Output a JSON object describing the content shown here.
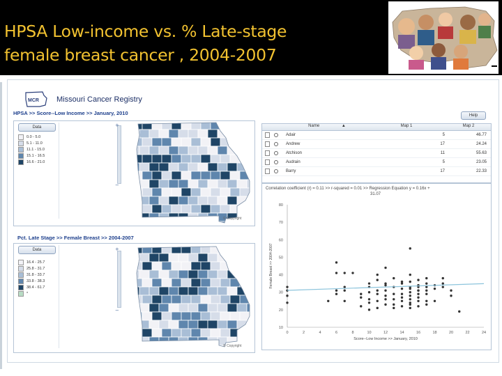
{
  "slide": {
    "title_line1": "HPSA Low-income vs. % Late-stage",
    "title_line2": "female breast cancer , 2004-2007"
  },
  "app": {
    "name": "Missouri Cancer Registry",
    "logo_text": "MCR",
    "help_label": "Help",
    "copyright": "© Copyright"
  },
  "map1": {
    "breadcrumb": "HPSA >> Score--Low Income >> January, 2010",
    "data_button": "Data",
    "legend": [
      {
        "label": "0.0 - 5.0",
        "color": "#f2f2f6"
      },
      {
        "label": "5.1 - 11.0",
        "color": "#d6dde9"
      },
      {
        "label": "11.1 - 15.0",
        "color": "#a9bed6"
      },
      {
        "label": "15.1 - 16.5",
        "color": "#5f86ad"
      },
      {
        "label": "16.6 - 21.0",
        "color": "#1f4566"
      }
    ]
  },
  "map2": {
    "breadcrumb": "Pct. Late Stage >> Female Breast >> 2004-2007",
    "data_button": "Data",
    "legend": [
      {
        "label": "16.4 - 25.7",
        "color": "#f2f2f6"
      },
      {
        "label": "25.8 - 31.7",
        "color": "#d6dde9"
      },
      {
        "label": "31.8 - 33.7",
        "color": "#a9bed6"
      },
      {
        "label": "33.8 - 38.3",
        "color": "#5f86ad"
      },
      {
        "label": "38.4 - 61.7",
        "color": "#1f4566"
      },
      {
        "label": "*",
        "color": "#b8dcc4"
      }
    ]
  },
  "table": {
    "headers": [
      "Name",
      "Map 1",
      "Map 2"
    ],
    "sort_indicator": "▲",
    "rows": [
      {
        "name": "Adair",
        "map1": "5",
        "map2": "46.77"
      },
      {
        "name": "Andrew",
        "map1": "17",
        "map2": "24.24"
      },
      {
        "name": "Atchison",
        "map1": "11",
        "map2": "55.63"
      },
      {
        "name": "Audrain",
        "map1": "5",
        "map2": "23.05"
      },
      {
        "name": "Barry",
        "map1": "17",
        "map2": "22.33"
      }
    ]
  },
  "regression": {
    "stats_line1": "Correlation coefficient (r) = 0.11  >> r-squared = 0.01 >> Regression Equation y = 0.16x +",
    "stats_line2": "31.07"
  },
  "chart_data": {
    "type": "scatter",
    "xlabel": "Score--Low Income >> January, 2010",
    "ylabel": "Female Breast >> 2004-2007",
    "xlim": [
      0,
      24
    ],
    "ylim": [
      10,
      80
    ],
    "xticks": [
      0,
      2,
      4,
      6,
      8,
      10,
      12,
      14,
      16,
      18,
      20,
      22,
      24
    ],
    "yticks": [
      10,
      20,
      30,
      40,
      50,
      60,
      70,
      80
    ],
    "grid": false,
    "trendline": {
      "slope": 0.16,
      "intercept": 31.07,
      "color": "#8cc4dc"
    },
    "points": [
      [
        0,
        31
      ],
      [
        0,
        33
      ],
      [
        0,
        24
      ],
      [
        0,
        28
      ],
      [
        5,
        25
      ],
      [
        6,
        29
      ],
      [
        6,
        31
      ],
      [
        6,
        41
      ],
      [
        6,
        47
      ],
      [
        7,
        33
      ],
      [
        7,
        41
      ],
      [
        7,
        31
      ],
      [
        7,
        25
      ],
      [
        8,
        41
      ],
      [
        9,
        29
      ],
      [
        9,
        27
      ],
      [
        9,
        22
      ],
      [
        10,
        35
      ],
      [
        10,
        33
      ],
      [
        10,
        30
      ],
      [
        10,
        26
      ],
      [
        10,
        24
      ],
      [
        10,
        20
      ],
      [
        11,
        21
      ],
      [
        11,
        31
      ],
      [
        11,
        29
      ],
      [
        11,
        25
      ],
      [
        11,
        37
      ],
      [
        11,
        40
      ],
      [
        12,
        34
      ],
      [
        12,
        31
      ],
      [
        12,
        28
      ],
      [
        12,
        26
      ],
      [
        12,
        23
      ],
      [
        12,
        44
      ],
      [
        12,
        35
      ],
      [
        13,
        33
      ],
      [
        13,
        29
      ],
      [
        13,
        26
      ],
      [
        13,
        21
      ],
      [
        13,
        23
      ],
      [
        13,
        38
      ],
      [
        14,
        35
      ],
      [
        14,
        32
      ],
      [
        14,
        29
      ],
      [
        14,
        27
      ],
      [
        14,
        25
      ],
      [
        14,
        22
      ],
      [
        14,
        36
      ],
      [
        15,
        36
      ],
      [
        15,
        33
      ],
      [
        15,
        30
      ],
      [
        15,
        28
      ],
      [
        15,
        26
      ],
      [
        15,
        24
      ],
      [
        15,
        21
      ],
      [
        15,
        23
      ],
      [
        15,
        32
      ],
      [
        15,
        55
      ],
      [
        15,
        40
      ],
      [
        16,
        34
      ],
      [
        16,
        33
      ],
      [
        16,
        31
      ],
      [
        16,
        29
      ],
      [
        16,
        27
      ],
      [
        16,
        25
      ],
      [
        16,
        22
      ],
      [
        16,
        37
      ],
      [
        16,
        31
      ],
      [
        17,
        33
      ],
      [
        17,
        29
      ],
      [
        17,
        25
      ],
      [
        17,
        23
      ],
      [
        17,
        38
      ],
      [
        17,
        35
      ],
      [
        17,
        31
      ],
      [
        18,
        34
      ],
      [
        18,
        32
      ],
      [
        18,
        25
      ],
      [
        19,
        33
      ],
      [
        19,
        38
      ],
      [
        19,
        35
      ],
      [
        20,
        31
      ],
      [
        20,
        28
      ],
      [
        21,
        19
      ]
    ]
  }
}
